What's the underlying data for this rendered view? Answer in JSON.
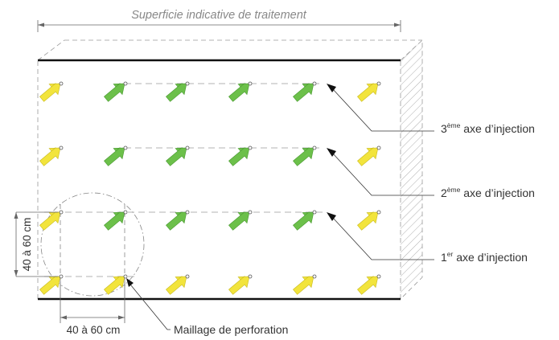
{
  "title": "Superficie indicative de traitement",
  "labels": {
    "axis3": {
      "num": "3",
      "sup": "ème",
      "rest": " axe d’injection"
    },
    "axis2": {
      "num": "2",
      "sup": "ème",
      "rest": " axe d’injection"
    },
    "axis1": {
      "num": "1",
      "sup": "er",
      "rest": " axe d’injection"
    },
    "mesh": "Maillage de perforation",
    "spacing_vertical": "40 à 60 cm",
    "spacing_horizontal": "40 à 60 cm"
  },
  "colors": {
    "yellow_arrow": "#f2e43c",
    "green_arrow": "#6cc04a",
    "line": "#111111",
    "thin": "#444444",
    "dash": "#9a9a9a",
    "text": "#333333",
    "title": "#888888"
  },
  "grid": {
    "rows": [
      [
        "yellow",
        "green",
        "green",
        "green",
        "green",
        "yellow"
      ],
      [
        "yellow",
        "green",
        "green",
        "green",
        "green",
        "yellow"
      ],
      [
        "yellow",
        "green",
        "green",
        "green",
        "green",
        "yellow"
      ],
      [
        "yellow",
        "yellow",
        "yellow",
        "yellow",
        "yellow",
        "yellow"
      ]
    ]
  }
}
